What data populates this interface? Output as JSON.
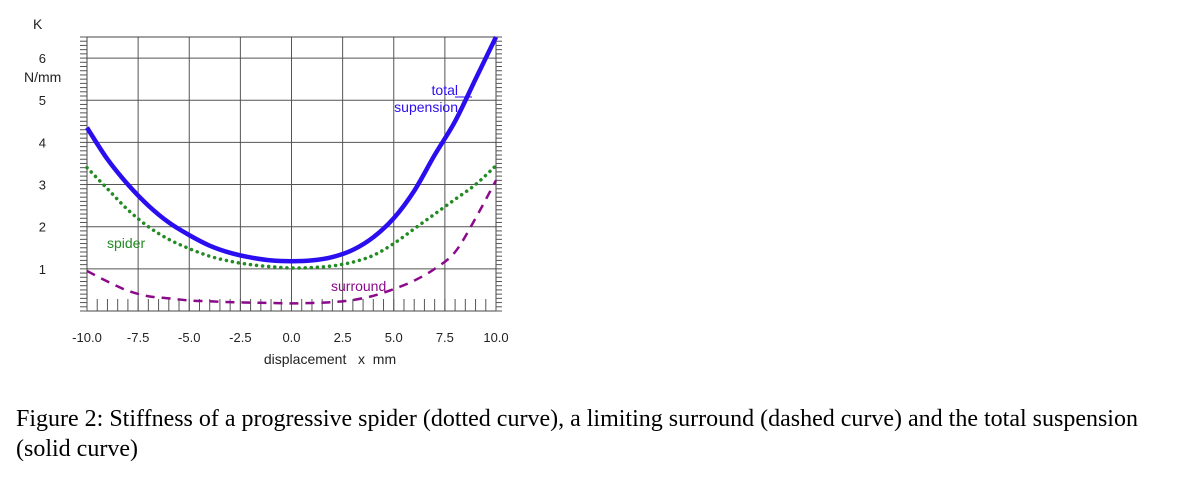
{
  "chart_data": {
    "type": "line",
    "ylabel": "K",
    "yunit": "N/mm",
    "xlabel": "displacement   x  mm",
    "xlim": [
      -10,
      10
    ],
    "ylim": [
      0,
      6.5
    ],
    "xticks": [
      "-10.0",
      "-7.5",
      "-5.0",
      "-2.5",
      "0.0",
      "2.5",
      "5.0",
      "7.5",
      "10.0"
    ],
    "yticks": [
      "1",
      "2",
      "3",
      "4",
      "5",
      "6"
    ],
    "grid": true,
    "series": [
      {
        "name": "total supension",
        "style": "solid",
        "color": "#2a0ef0",
        "x": [
          -10,
          -9,
          -8,
          -7,
          -6,
          -5,
          -4,
          -3,
          -2,
          -1,
          0,
          1,
          2,
          3,
          4,
          5,
          6,
          7,
          8,
          9,
          10
        ],
        "y": [
          4.35,
          3.6,
          3.0,
          2.5,
          2.1,
          1.8,
          1.55,
          1.38,
          1.27,
          1.2,
          1.18,
          1.2,
          1.28,
          1.45,
          1.75,
          2.2,
          2.85,
          3.7,
          4.5,
          5.5,
          6.5
        ]
      },
      {
        "name": "spider",
        "style": "dotted",
        "color": "#228b22",
        "x": [
          -10,
          -9,
          -8,
          -7,
          -6,
          -5,
          -4,
          -3,
          -2,
          -1,
          0,
          1,
          2,
          3,
          4,
          5,
          6,
          7,
          8,
          9,
          10
        ],
        "y": [
          3.4,
          2.9,
          2.4,
          2.0,
          1.7,
          1.48,
          1.3,
          1.18,
          1.1,
          1.05,
          1.02,
          1.03,
          1.07,
          1.16,
          1.32,
          1.6,
          1.95,
          2.3,
          2.65,
          3.0,
          3.45
        ]
      },
      {
        "name": "surround",
        "style": "dashed",
        "color": "#8b0a8b",
        "x": [
          -10,
          -9,
          -8,
          -7,
          -6,
          -5,
          -4,
          -3,
          -2,
          -1,
          0,
          1,
          2,
          3,
          4,
          5,
          6,
          7,
          8,
          9,
          10
        ],
        "y": [
          0.95,
          0.7,
          0.48,
          0.35,
          0.3,
          0.25,
          0.23,
          0.21,
          0.2,
          0.19,
          0.18,
          0.19,
          0.21,
          0.26,
          0.36,
          0.52,
          0.72,
          1.0,
          1.4,
          2.2,
          3.1
        ]
      }
    ]
  },
  "caption": "Figure 2: Stiffness of a progressive spider (dotted curve), a limiting surround (dashed curve) and the total suspension (solid curve)",
  "labels": {
    "total_line1": "total",
    "total_line2": "supension",
    "spider": "spider",
    "surround": "surround"
  }
}
